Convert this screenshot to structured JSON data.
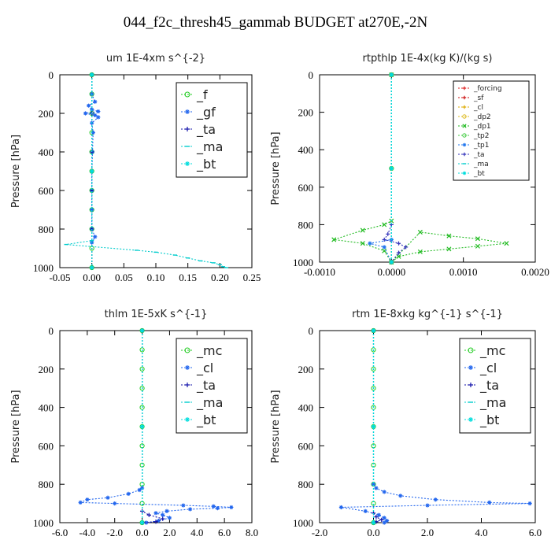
{
  "figure_title": "044_f2c_thresh45_gammab  BUDGET at270E,-2N",
  "chart_data": [
    {
      "type": "line",
      "title": "um  1E-4xm s^{-2}",
      "ylabel": "Pressure [hPa]",
      "xlim": [
        -0.05,
        0.25
      ],
      "ylim": [
        1000,
        0
      ],
      "xticks": [
        "-0.05",
        "0.00",
        "0.05",
        "0.10",
        "0.15",
        "0.20",
        "0.25"
      ],
      "xtick_values": [
        -0.05,
        0.0,
        0.05,
        0.1,
        0.15,
        0.2,
        0.25
      ],
      "yticks": [
        "0",
        "200",
        "400",
        "600",
        "800",
        "1000"
      ],
      "ytick_values": [
        0,
        200,
        400,
        600,
        800,
        1000
      ],
      "legend": {
        "position": "top-right",
        "font": "large"
      },
      "series": [
        {
          "name": "_f",
          "color": "#22cc22",
          "marker": "o",
          "x": [
            0.0,
            0.0,
            0.0,
            0.0,
            0.0,
            0.0,
            0.0,
            0.0,
            0.0,
            0.0,
            0.0
          ],
          "y": [
            0,
            100,
            200,
            300,
            400,
            500,
            600,
            700,
            800,
            900,
            1000
          ]
        },
        {
          "name": "_gf",
          "color": "#2266ee",
          "marker": "star",
          "x": [
            0.0,
            0.0,
            0.005,
            -0.005,
            0.0,
            0.01,
            -0.01,
            0.005,
            0.01,
            0.0,
            0.002,
            0.001,
            0.0,
            0.0,
            0.0,
            0.0,
            0.005,
            0.0
          ],
          "y": [
            0,
            100,
            140,
            160,
            180,
            190,
            200,
            210,
            220,
            250,
            300,
            400,
            500,
            600,
            700,
            800,
            840,
            870
          ]
        },
        {
          "name": "_ta",
          "color": "#1111aa",
          "marker": "plus",
          "x": [
            0.0,
            0.0,
            0.0,
            0.0,
            0.0,
            0.0
          ],
          "y": [
            0,
            200,
            400,
            600,
            800,
            1000
          ]
        },
        {
          "name": "_ma",
          "color": "#00cccc",
          "marker": "dash",
          "x": [
            0.0,
            0.0,
            -0.04,
            0.07,
            0.1,
            0.13,
            0.15,
            0.17,
            0.19,
            0.2,
            0.205,
            0.21
          ],
          "y": [
            0,
            860,
            880,
            910,
            920,
            935,
            950,
            965,
            975,
            985,
            995,
            1000
          ]
        },
        {
          "name": "_bt",
          "color": "#00dddd",
          "marker": "star",
          "x": [
            0.0,
            0.0,
            0.0
          ],
          "y": [
            0,
            500,
            1000
          ]
        }
      ]
    },
    {
      "type": "line",
      "title": "rtpthlp  1E-4x(kg K)/(kg s)",
      "ylabel": "Pressure [hPa]",
      "xlim": [
        -0.001,
        0.002
      ],
      "ylim": [
        1000,
        0
      ],
      "xticks": [
        "-0.0010",
        "0.0000",
        "0.0010",
        "0.0020"
      ],
      "xtick_values": [
        -0.001,
        0.0,
        0.001,
        0.002
      ],
      "yticks": [
        "0",
        "200",
        "400",
        "600",
        "800",
        "1000"
      ],
      "ytick_values": [
        0,
        200,
        400,
        600,
        800,
        1000
      ],
      "legend": {
        "position": "top-right",
        "font": "small"
      },
      "series": [
        {
          "name": "_forcing",
          "color": "#dd2222",
          "marker": "plus",
          "x": [
            0.0,
            0.0,
            0.0
          ],
          "y": [
            0,
            500,
            1000
          ]
        },
        {
          "name": "_sf",
          "color": "#cc1111",
          "marker": "plus",
          "x": [
            0.0,
            0.0,
            0.0
          ],
          "y": [
            0,
            500,
            1000
          ]
        },
        {
          "name": "_cl",
          "color": "#ddaa00",
          "marker": "plus",
          "x": [
            0.0,
            0.0,
            0.0
          ],
          "y": [
            0,
            500,
            1000
          ]
        },
        {
          "name": "_dp2",
          "color": "#ddbb22",
          "marker": "o",
          "x": [
            0.0,
            0.0,
            0.0
          ],
          "y": [
            0,
            500,
            1000
          ]
        },
        {
          "name": "_dp1",
          "color": "#22bb22",
          "marker": "x",
          "x": [
            0.0,
            0.0,
            -0.0001,
            -0.0004,
            -0.0008,
            -0.0004,
            -0.0001,
            0.0,
            0.0004,
            0.0008,
            0.0012,
            0.0016,
            0.0012,
            0.0008,
            0.0004,
            0.0001,
            0.0
          ],
          "y": [
            0,
            780,
            800,
            830,
            880,
            900,
            940,
            1000,
            840,
            860,
            875,
            900,
            915,
            930,
            945,
            970,
            1000
          ]
        },
        {
          "name": "_tp2",
          "color": "#44cc44",
          "marker": "o",
          "x": [
            0.0,
            0.0,
            0.0
          ],
          "y": [
            0,
            500,
            1000
          ]
        },
        {
          "name": "_tp1",
          "color": "#2277ee",
          "marker": "star",
          "x": [
            0.0,
            0.0,
            -0.0003,
            -0.0001,
            0.0
          ],
          "y": [
            0,
            880,
            900,
            920,
            1000
          ]
        },
        {
          "name": "_ta",
          "color": "#3333bb",
          "marker": "plus",
          "x": [
            0.0,
            -5e-05,
            -0.0001,
            0.0001,
            0.0002,
            0.0001,
            0.0
          ],
          "y": [
            800,
            850,
            880,
            900,
            920,
            950,
            1000
          ]
        },
        {
          "name": "_ma",
          "color": "#00cccc",
          "marker": "dash",
          "x": [
            0.0,
            0.0,
            0.0
          ],
          "y": [
            0,
            500,
            1000
          ]
        },
        {
          "name": "_bt",
          "color": "#00dddd",
          "marker": "star",
          "x": [
            0.0,
            0.0,
            0.0
          ],
          "y": [
            0,
            500,
            1000
          ]
        }
      ]
    },
    {
      "type": "line",
      "title": "thlm  1E-5xK s^{-1}",
      "ylabel": "Pressure [hPa]",
      "xlim": [
        -6.0,
        8.0
      ],
      "ylim": [
        1000,
        0
      ],
      "xticks": [
        "-6.0",
        "-4.0",
        "-2.0",
        "0.0",
        "2.0",
        "4.0",
        "6.0",
        "8.0"
      ],
      "xtick_values": [
        -6,
        -4,
        -2,
        0,
        2,
        4,
        6,
        8
      ],
      "yticks": [
        "0",
        "200",
        "400",
        "600",
        "800",
        "1000"
      ],
      "ytick_values": [
        0,
        200,
        400,
        600,
        800,
        1000
      ],
      "legend": {
        "position": "top-right",
        "font": "large"
      },
      "series": [
        {
          "name": "_mc",
          "color": "#22cc22",
          "marker": "o",
          "x": [
            0.0,
            0.0,
            0.0,
            0.0,
            0.0,
            0.0,
            0.0,
            0.0,
            0.0,
            0.0,
            0.0
          ],
          "y": [
            0,
            100,
            200,
            300,
            400,
            500,
            600,
            700,
            800,
            900,
            1000
          ]
        },
        {
          "name": "_cl",
          "color": "#2266ee",
          "marker": "star",
          "x": [
            0.0,
            0.0,
            -0.2,
            -1.0,
            -2.5,
            -4.0,
            -4.5,
            -2.0,
            3.0,
            5.2,
            6.5,
            5.5,
            3.5,
            1.8,
            1.0,
            1.5,
            2.0,
            1.2,
            0.3
          ],
          "y": [
            0,
            820,
            830,
            850,
            870,
            880,
            895,
            900,
            910,
            915,
            920,
            925,
            930,
            940,
            950,
            960,
            975,
            990,
            1000
          ]
        },
        {
          "name": "_ta",
          "color": "#1111aa",
          "marker": "plus",
          "x": [
            0.0,
            0.0,
            0.5,
            1.5,
            1.0,
            0.0
          ],
          "y": [
            0,
            940,
            960,
            980,
            995,
            1000
          ]
        },
        {
          "name": "_ma",
          "color": "#00cccc",
          "marker": "dash",
          "x": [
            0.0,
            0.0,
            0.0
          ],
          "y": [
            0,
            500,
            1000
          ]
        },
        {
          "name": "_bt",
          "color": "#00dddd",
          "marker": "star",
          "x": [
            0.0,
            0.0,
            0.0
          ],
          "y": [
            0,
            500,
            1000
          ]
        }
      ]
    },
    {
      "type": "line",
      "title": "rtm  1E-8xkg kg^{-1} s^{-1}",
      "ylabel": "Pressure [hPa]",
      "xlim": [
        -2.0,
        6.0
      ],
      "ylim": [
        1000,
        0
      ],
      "xticks": [
        "-2.0",
        "0.0",
        "2.0",
        "4.0",
        "6.0"
      ],
      "xtick_values": [
        -2,
        0,
        2,
        4,
        6
      ],
      "yticks": [
        "0",
        "200",
        "400",
        "600",
        "800",
        "1000"
      ],
      "ytick_values": [
        0,
        200,
        400,
        600,
        800,
        1000
      ],
      "legend": {
        "position": "top-right",
        "font": "large"
      },
      "series": [
        {
          "name": "_mc",
          "color": "#22cc22",
          "marker": "o",
          "x": [
            0.0,
            0.0,
            0.0,
            0.0,
            0.0,
            0.0,
            0.0,
            0.0,
            0.0,
            0.0,
            0.0
          ],
          "y": [
            0,
            100,
            200,
            300,
            400,
            500,
            600,
            700,
            800,
            900,
            1000
          ]
        },
        {
          "name": "_cl",
          "color": "#2266ee",
          "marker": "star",
          "x": [
            0.0,
            0.0,
            0.1,
            0.4,
            1.0,
            2.3,
            4.3,
            5.8,
            2.0,
            -1.2,
            -0.3,
            0.2,
            0.4,
            0.5,
            0.4
          ],
          "y": [
            0,
            800,
            820,
            840,
            860,
            880,
            895,
            900,
            910,
            920,
            940,
            960,
            975,
            990,
            1000
          ]
        },
        {
          "name": "_ta",
          "color": "#1111aa",
          "marker": "plus",
          "x": [
            0.0,
            0.0,
            0.1,
            0.3,
            0.1,
            0.0
          ],
          "y": [
            0,
            950,
            970,
            985,
            995,
            1000
          ]
        },
        {
          "name": "_ma",
          "color": "#00cccc",
          "marker": "dash",
          "x": [
            0.0,
            0.0,
            0.0
          ],
          "y": [
            0,
            500,
            1000
          ]
        },
        {
          "name": "_bt",
          "color": "#00dddd",
          "marker": "star",
          "x": [
            0.0,
            0.0,
            0.0
          ],
          "y": [
            0,
            500,
            1000
          ]
        }
      ]
    }
  ]
}
